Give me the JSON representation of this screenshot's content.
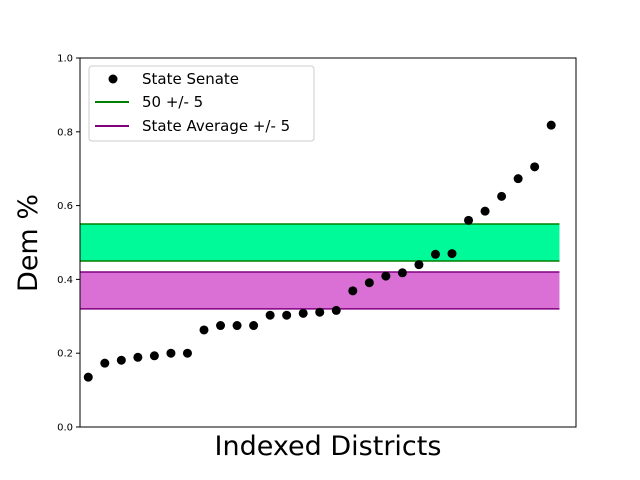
{
  "chart_data": {
    "type": "scatter",
    "xlabel": "Indexed Districts",
    "ylabel": "Dem %",
    "ylim": [
      0,
      1
    ],
    "y_ticks": [
      "0.0",
      "0.2",
      "0.4",
      "0.6",
      "0.8",
      "1.0"
    ],
    "y_tick_values": [
      0,
      0.2,
      0.4,
      0.6,
      0.8,
      1.0
    ],
    "x_ticks_shown": false,
    "xlim": [
      -0.5,
      29.5
    ],
    "grid": false,
    "legend_position": "top-left",
    "series": [
      {
        "name": "State Senate",
        "color": "#000000",
        "marker": "circle",
        "x": [
          0,
          1,
          2,
          3,
          4,
          5,
          6,
          7,
          8,
          9,
          10,
          11,
          12,
          13,
          14,
          15,
          16,
          17,
          18,
          19,
          20,
          21,
          22,
          23,
          24,
          25,
          26,
          27,
          28
        ],
        "values": [
          0.135,
          0.173,
          0.181,
          0.189,
          0.193,
          0.2,
          0.2,
          0.263,
          0.275,
          0.275,
          0.275,
          0.303,
          0.303,
          0.308,
          0.311,
          0.316,
          0.369,
          0.391,
          0.409,
          0.418,
          0.44,
          0.468,
          0.47,
          0.56,
          0.585,
          0.625,
          0.673,
          0.705,
          0.818
        ]
      }
    ],
    "bands": [
      {
        "name": "50 +/- 5",
        "center": 0.5,
        "low": 0.45,
        "high": 0.55,
        "line_color": "#008000",
        "fill_color": "#00FA9A"
      },
      {
        "name": "State Average +/- 5",
        "center": 0.37,
        "low": 0.32,
        "high": 0.42,
        "line_color": "#800080",
        "fill_color": "#DA70D6"
      }
    ]
  }
}
